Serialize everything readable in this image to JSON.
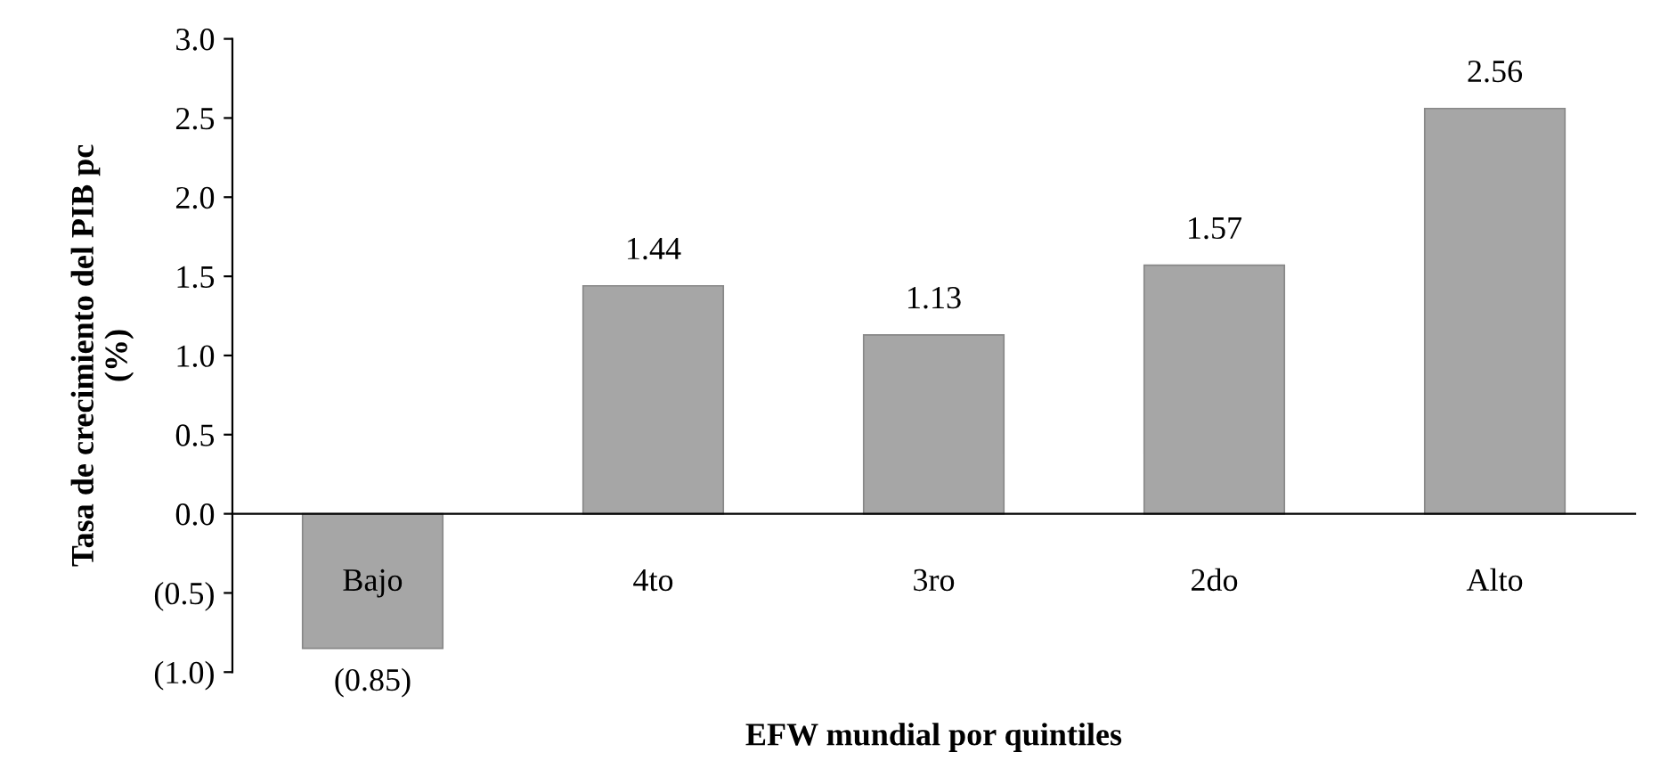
{
  "chart_data": {
    "type": "bar",
    "xlabel": "EFW mundial por quintiles",
    "ylabel": "Tasa de crecimiento del PIB pc\n(%)",
    "categories": [
      "Bajo",
      "4to",
      "3ro",
      "2do",
      "Alto"
    ],
    "values": [
      -0.85,
      1.44,
      1.13,
      1.57,
      2.56
    ],
    "value_labels": [
      "(0.85)",
      "1.44",
      "1.13",
      "1.57",
      "2.56"
    ],
    "color": "#a6a6a6",
    "ylim": [
      -1.0,
      3.0
    ],
    "yticks": [
      {
        "value": -1.0,
        "label": "(1.0)"
      },
      {
        "value": -0.5,
        "label": "(0.5)"
      },
      {
        "value": 0.0,
        "label": "0.0"
      },
      {
        "value": 0.5,
        "label": "0.5"
      },
      {
        "value": 1.0,
        "label": "1.0"
      },
      {
        "value": 1.5,
        "label": "1.5"
      },
      {
        "value": 2.0,
        "label": "2.0"
      },
      {
        "value": 2.5,
        "label": "2.5"
      },
      {
        "value": 3.0,
        "label": "3.0"
      }
    ],
    "grid": false,
    "legend": false
  }
}
